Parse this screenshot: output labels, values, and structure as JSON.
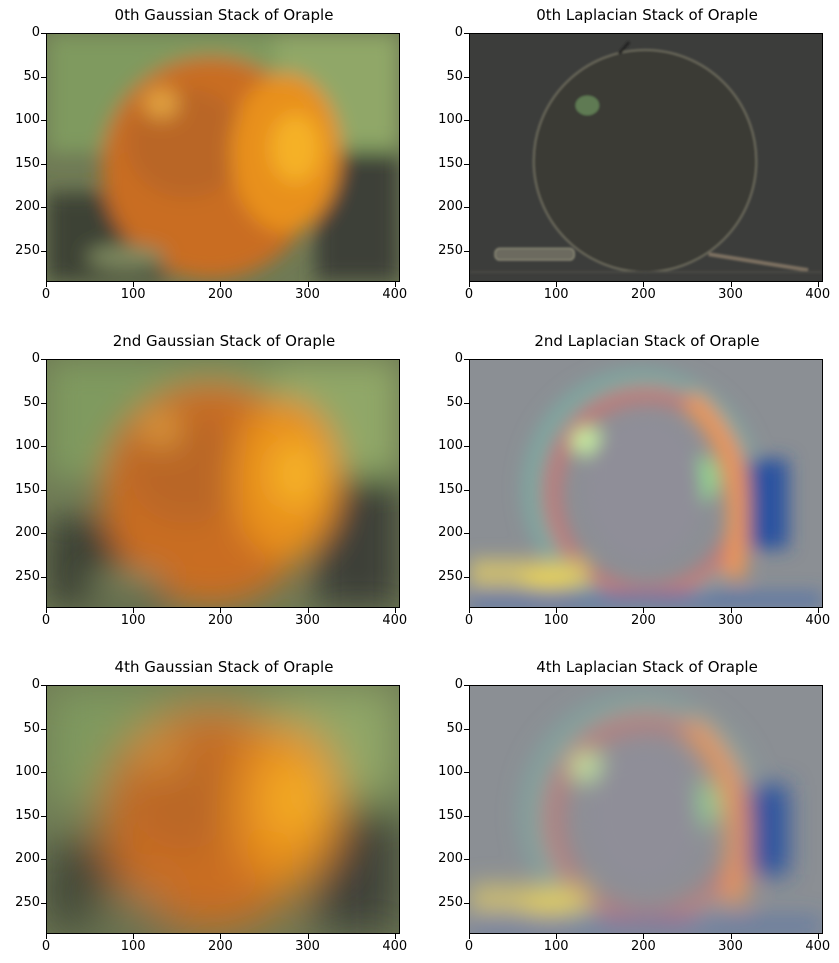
{
  "panels": [
    {
      "id": "g0",
      "title": "0th Gaussian Stack of Oraple",
      "style": "gauss0"
    },
    {
      "id": "l0",
      "title": "0th Laplacian Stack of Oraple",
      "style": "lap0"
    },
    {
      "id": "g2",
      "title": "2nd Gaussian Stack of Oraple",
      "style": "gauss2"
    },
    {
      "id": "l2",
      "title": "2nd Laplacian Stack of Oraple",
      "style": "lap2"
    },
    {
      "id": "g4",
      "title": "4th Gaussian Stack of Oraple",
      "style": "gauss4"
    },
    {
      "id": "l4",
      "title": "4th Laplacian Stack of Oraple",
      "style": "lap4"
    }
  ],
  "axes": {
    "x_ticks": [
      "0",
      "100",
      "200",
      "300",
      "400"
    ],
    "y_ticks": [
      "0",
      "50",
      "100",
      "150",
      "200",
      "250"
    ],
    "x_range": [
      0,
      406
    ],
    "y_range": [
      0,
      286
    ]
  }
}
